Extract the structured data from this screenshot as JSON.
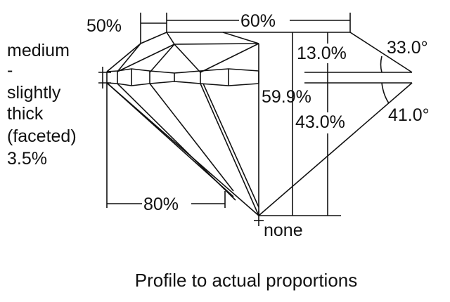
{
  "girdle_label": {
    "lines": [
      "medium",
      "-",
      "slightly",
      "thick",
      "(faceted)",
      "3.5%"
    ]
  },
  "dimensions": {
    "star_length": "50%",
    "table": "60%",
    "crown_height": "13.0%",
    "crown_angle": "33.0°",
    "total_depth": "59.9%",
    "pavilion_depth": "43.0%",
    "pavilion_angle": "41.0°",
    "lower_half_length": "80%",
    "culet": "none"
  },
  "caption": "Profile to actual proportions"
}
